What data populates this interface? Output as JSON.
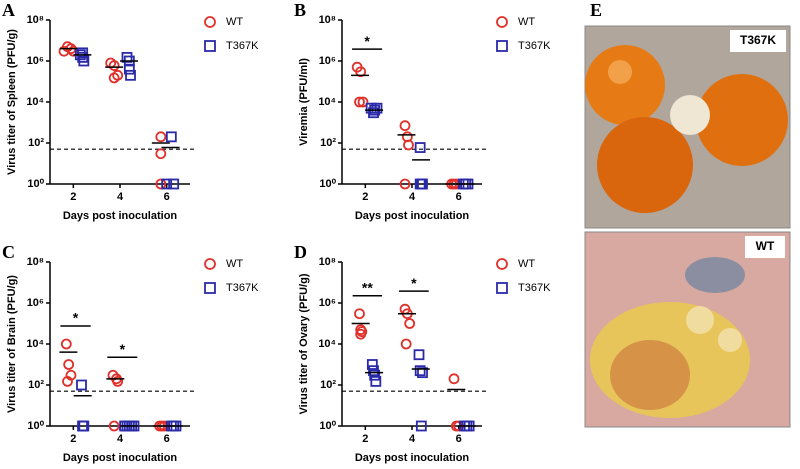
{
  "chart_data": [
    {
      "type": "scatter",
      "label": "A",
      "y_label": "Virus titer of Spleen (PFU/g)",
      "x_label": "Days post inoculation",
      "log_y": true,
      "xlim": [
        1,
        7
      ],
      "xticks": [
        2,
        4,
        6
      ],
      "ylim": [
        1,
        100000000.0
      ],
      "yticks": [
        {
          "value": 1,
          "label": "10⁰"
        },
        {
          "value": 100,
          "label": "10²"
        },
        {
          "value": 10000,
          "label": "10⁴"
        },
        {
          "value": 1000000,
          "label": "10⁶"
        },
        {
          "value": 100000000,
          "label": "10⁸"
        }
      ],
      "detection_limit": 50,
      "significance": [],
      "series": [
        {
          "name": "WT",
          "color": "#e0302a",
          "marker": "circle",
          "x": [
            1.6,
            1.75,
            1.9,
            2.0,
            3.6,
            3.75,
            3.9,
            3.75,
            5.75,
            5.75,
            5.75
          ],
          "values": [
            3000000.0,
            5000000.0,
            4000000.0,
            3000000.0,
            800000.0,
            600000.0,
            200000.0,
            150000.0,
            200,
            30,
            1
          ],
          "medians": [
            4000000.0,
            500000.0,
            100
          ]
        },
        {
          "name": "T367K",
          "color": "#2a2aa8",
          "marker": "square",
          "x": [
            2.3,
            2.4,
            2.4,
            2.45,
            4.3,
            4.4,
            4.4,
            4.45,
            6.2,
            6.0,
            6.3
          ],
          "values": [
            2000000.0,
            2500000.0,
            1500000.0,
            1000000.0,
            1500000.0,
            1000000.0,
            400000.0,
            200000.0,
            200,
            1,
            1
          ],
          "medians": [
            2000000.0,
            1000000.0,
            60
          ]
        }
      ]
    },
    {
      "type": "scatter",
      "label": "B",
      "y_label": "Viremia (PFU/ml)",
      "x_label": "Days post inoculation",
      "log_y": true,
      "xlim": [
        1,
        7
      ],
      "xticks": [
        2,
        4,
        6
      ],
      "ylim": [
        1,
        100000000.0
      ],
      "yticks": [
        {
          "value": 1,
          "label": "10⁰"
        },
        {
          "value": 100,
          "label": "10²"
        },
        {
          "value": 10000,
          "label": "10⁴"
        },
        {
          "value": 1000000,
          "label": "10⁶"
        },
        {
          "value": 100000000,
          "label": "10⁸"
        }
      ],
      "detection_limit": 50,
      "significance": [
        {
          "text": "*",
          "x": 2
        }
      ],
      "series": [
        {
          "name": "WT",
          "color": "#e0302a",
          "marker": "circle",
          "x": [
            1.65,
            1.8,
            1.9,
            1.75,
            3.7,
            3.8,
            3.85,
            3.7,
            5.7,
            5.8,
            5.9
          ],
          "values": [
            500000.0,
            300000.0,
            10000.0,
            10000.0,
            700,
            200,
            80,
            1,
            1,
            1,
            1
          ],
          "medians": [
            200000.0,
            250,
            1
          ]
        },
        {
          "name": "T367K",
          "color": "#2a2aa8",
          "marker": "square",
          "x": [
            2.25,
            2.35,
            2.4,
            2.5,
            4.35,
            4.35,
            4.4,
            4.45,
            6.2,
            6.3,
            6.4
          ],
          "values": [
            5000.0,
            3000.0,
            4000.0,
            5000.0,
            60,
            1,
            1,
            1,
            1,
            1,
            1
          ],
          "medians": [
            4000.0,
            15,
            1
          ]
        }
      ]
    },
    {
      "type": "scatter",
      "label": "C",
      "y_label": "Virus titer of Brain (PFU/g)",
      "x_label": "Days post inoculation",
      "log_y": true,
      "xlim": [
        1,
        7
      ],
      "xticks": [
        2,
        4,
        6
      ],
      "ylim": [
        1,
        100000000.0
      ],
      "yticks": [
        {
          "value": 1,
          "label": "10⁰"
        },
        {
          "value": 100,
          "label": "10²"
        },
        {
          "value": 10000,
          "label": "10⁴"
        },
        {
          "value": 1000000,
          "label": "10⁶"
        },
        {
          "value": 100000000,
          "label": "10⁸"
        }
      ],
      "detection_limit": 50,
      "significance": [
        {
          "text": "*",
          "x": 2
        },
        {
          "text": "*",
          "x": 4
        }
      ],
      "series": [
        {
          "name": "WT",
          "color": "#e0302a",
          "marker": "circle",
          "x": [
            1.7,
            1.8,
            1.9,
            1.75,
            3.7,
            3.85,
            3.9,
            3.75,
            5.7,
            5.8,
            5.9
          ],
          "values": [
            10000.0,
            1000.0,
            300,
            150,
            300,
            200,
            150,
            1,
            1,
            1,
            1
          ],
          "medians": [
            4000.0,
            200,
            1
          ]
        },
        {
          "name": "T367K",
          "color": "#2a2aa8",
          "marker": "square",
          "x": [
            2.35,
            2.4,
            2.45,
            2.4,
            4.2,
            4.3,
            4.4,
            4.5,
            4.6,
            6.2,
            6.3,
            6.4
          ],
          "values": [
            100,
            1,
            1,
            1,
            1,
            1,
            1,
            1,
            1,
            1,
            1,
            1
          ],
          "medians": [
            30,
            1,
            1
          ]
        }
      ]
    },
    {
      "type": "scatter",
      "label": "D",
      "y_label": "Virus titer of Ovary (PFU/g)",
      "x_label": "Days post inoculation",
      "log_y": true,
      "xlim": [
        1,
        7
      ],
      "xticks": [
        2,
        4,
        6
      ],
      "ylim": [
        1,
        100000000.0
      ],
      "yticks": [
        {
          "value": 1,
          "label": "10⁰"
        },
        {
          "value": 100,
          "label": "10²"
        },
        {
          "value": 10000,
          "label": "10⁴"
        },
        {
          "value": 1000000,
          "label": "10⁶"
        },
        {
          "value": 100000000,
          "label": "10⁸"
        }
      ],
      "detection_limit": 50,
      "significance": [
        {
          "text": "**",
          "x": 2
        },
        {
          "text": "*",
          "x": 4
        }
      ],
      "series": [
        {
          "name": "WT",
          "color": "#e0302a",
          "marker": "circle",
          "x": [
            1.75,
            1.8,
            1.85,
            1.8,
            3.7,
            3.8,
            3.9,
            3.75,
            5.8,
            5.9,
            6.0
          ],
          "values": [
            300000.0,
            50000.0,
            40000.0,
            30000.0,
            500000.0,
            300000.0,
            100000.0,
            10000.0,
            200,
            1,
            1
          ],
          "medians": [
            100000.0,
            300000.0,
            60
          ]
        },
        {
          "name": "T367K",
          "color": "#2a2aa8",
          "marker": "square",
          "x": [
            2.3,
            2.35,
            2.4,
            2.45,
            4.3,
            4.35,
            4.45,
            4.4,
            6.25,
            6.35,
            6.45
          ],
          "values": [
            1000.0,
            500,
            300,
            150,
            3000.0,
            500,
            400,
            1,
            1,
            1,
            1
          ],
          "medians": [
            400,
            600,
            1
          ]
        }
      ]
    }
  ],
  "photos": {
    "label": "E",
    "images": [
      {
        "label": "T367K"
      },
      {
        "label": "WT"
      }
    ]
  }
}
